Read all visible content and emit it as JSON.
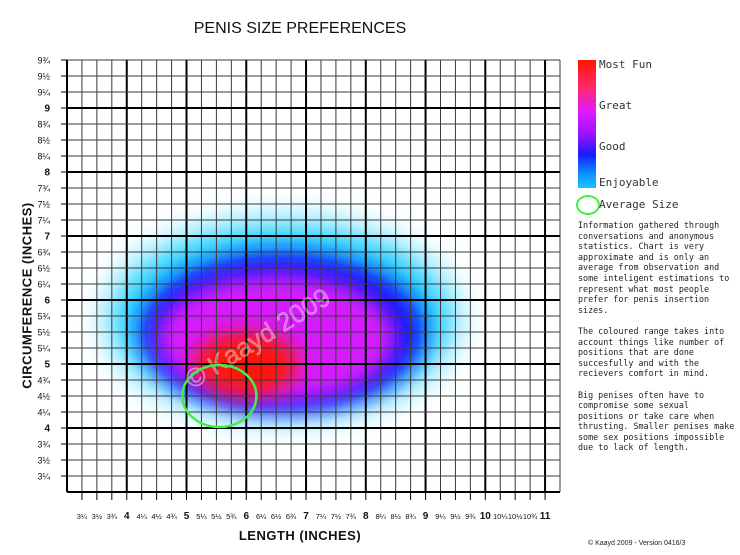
{
  "chart_data": {
    "type": "heatmap",
    "title": "PENIS SIZE PREFERENCES",
    "xlabel": "LENGTH (INCHES)",
    "ylabel": "CIRCUMFERENCE (INCHES)",
    "x_range": [
      3,
      11.25
    ],
    "y_range": [
      3,
      9.75
    ],
    "x_ticks": [
      {
        "v": 3.25,
        "label": "3¼"
      },
      {
        "v": 3.5,
        "label": "3½"
      },
      {
        "v": 3.75,
        "label": "3¾"
      },
      {
        "v": 4,
        "label": "4"
      },
      {
        "v": 4.25,
        "label": "4¼"
      },
      {
        "v": 4.5,
        "label": "4½"
      },
      {
        "v": 4.75,
        "label": "4¾"
      },
      {
        "v": 5,
        "label": "5"
      },
      {
        "v": 5.25,
        "label": "5¼"
      },
      {
        "v": 5.5,
        "label": "5½"
      },
      {
        "v": 5.75,
        "label": "5¾"
      },
      {
        "v": 6,
        "label": "6"
      },
      {
        "v": 6.25,
        "label": "6¼"
      },
      {
        "v": 6.5,
        "label": "6½"
      },
      {
        "v": 6.75,
        "label": "6¾"
      },
      {
        "v": 7,
        "label": "7"
      },
      {
        "v": 7.25,
        "label": "7¼"
      },
      {
        "v": 7.5,
        "label": "7½"
      },
      {
        "v": 7.75,
        "label": "7¾"
      },
      {
        "v": 8,
        "label": "8"
      },
      {
        "v": 8.25,
        "label": "8¼"
      },
      {
        "v": 8.5,
        "label": "8½"
      },
      {
        "v": 8.75,
        "label": "8¾"
      },
      {
        "v": 9,
        "label": "9"
      },
      {
        "v": 9.25,
        "label": "9¼"
      },
      {
        "v": 9.5,
        "label": "9½"
      },
      {
        "v": 9.75,
        "label": "9¾"
      },
      {
        "v": 10,
        "label": "10"
      },
      {
        "v": 10.25,
        "label": "10¼"
      },
      {
        "v": 10.5,
        "label": "10½"
      },
      {
        "v": 10.75,
        "label": "10¾"
      },
      {
        "v": 11,
        "label": "11"
      }
    ],
    "y_ticks": [
      {
        "v": 3.25,
        "label": "3¼"
      },
      {
        "v": 3.5,
        "label": "3½"
      },
      {
        "v": 3.75,
        "label": "3¾"
      },
      {
        "v": 4,
        "label": "4"
      },
      {
        "v": 4.25,
        "label": "4¼"
      },
      {
        "v": 4.5,
        "label": "4½"
      },
      {
        "v": 4.75,
        "label": "4¾"
      },
      {
        "v": 5,
        "label": "5"
      },
      {
        "v": 5.25,
        "label": "5¼"
      },
      {
        "v": 5.5,
        "label": "5½"
      },
      {
        "v": 5.75,
        "label": "5¾"
      },
      {
        "v": 6,
        "label": "6"
      },
      {
        "v": 6.25,
        "label": "6¼"
      },
      {
        "v": 6.5,
        "label": "6½"
      },
      {
        "v": 6.75,
        "label": "6¾"
      },
      {
        "v": 7,
        "label": "7"
      },
      {
        "v": 7.25,
        "label": "7¼"
      },
      {
        "v": 7.5,
        "label": "7½"
      },
      {
        "v": 7.75,
        "label": "7¾"
      },
      {
        "v": 8,
        "label": "8"
      },
      {
        "v": 8.25,
        "label": "8¼"
      },
      {
        "v": 8.5,
        "label": "8½"
      },
      {
        "v": 8.75,
        "label": "8¾"
      },
      {
        "v": 9,
        "label": "9"
      },
      {
        "v": 9.25,
        "label": "9¼"
      },
      {
        "v": 9.5,
        "label": "9½"
      },
      {
        "v": 9.75,
        "label": "9¾"
      }
    ],
    "regions": [
      {
        "level": "Enjoyable",
        "color": "#19cfff",
        "x_range": [
          4,
          9.75
        ],
        "y_range": [
          4.25,
          7.25
        ],
        "center": [
          6.6,
          5.7
        ]
      },
      {
        "level": "Good",
        "color": "#1515ff",
        "x_range": [
          4.25,
          9
        ],
        "y_range": [
          4.25,
          6.75
        ],
        "center": [
          6.6,
          5.5
        ]
      },
      {
        "level": "Great",
        "color": "#d61aff",
        "x_range": [
          4.5,
          8.5
        ],
        "y_range": [
          4.5,
          6.5
        ],
        "center": [
          6.5,
          5.4
        ]
      },
      {
        "level": "Most Fun",
        "color": "#ff1800",
        "x_range": [
          5.25,
          7
        ],
        "y_range": [
          4.5,
          5.5
        ],
        "center": [
          6,
          5
        ]
      }
    ],
    "average_size": {
      "x": 5.5,
      "y": 4.5
    },
    "legend": [
      "Most Fun",
      "Great",
      "Good",
      "Enjoyable"
    ],
    "watermark": "© Kaayd 2009"
  },
  "legend": {
    "most_fun": "Most Fun",
    "great": "Great",
    "good": "Good",
    "enjoyable": "Enjoyable",
    "average": "Average Size"
  },
  "notes": {
    "p1": "Information gathered through conversations and anonymous statistics. Chart is very approximate and is only an average from observation and some inteligent estimations to represent what most people prefer for penis insertion sizes.",
    "p2": "The coloured range takes into account things like number of positions that are done succesfully and with the recievers comfort in mind.",
    "p3": "Big penises often have to compromise some sexual positions or take care when thrusting. Smaller penises make some sex positions impossible due to lack of length."
  },
  "footer": "© Kaayd 2009 - Version 0416/3"
}
